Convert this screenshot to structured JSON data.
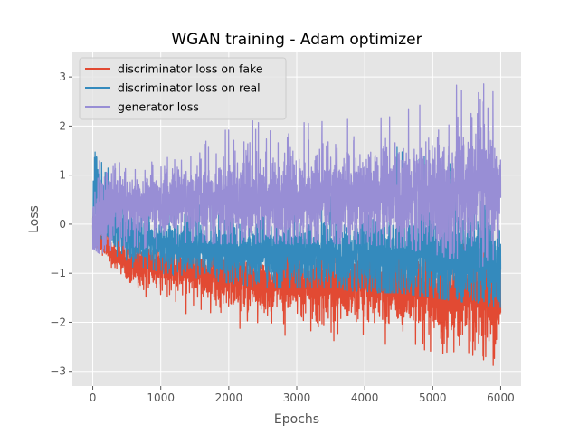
{
  "chart_data": {
    "type": "line",
    "title": "WGAN training - Adam optimizer",
    "xlabel": "Epochs",
    "ylabel": "Loss",
    "xlim": [
      -300,
      6300
    ],
    "ylim": [
      -3.3,
      3.5
    ],
    "xticks": [
      0,
      1000,
      2000,
      3000,
      4000,
      5000,
      6000
    ],
    "yticks": [
      -3,
      -2,
      -1,
      0,
      1,
      2,
      3
    ],
    "grid": true,
    "legend_position": "top-left",
    "n_points": 6001,
    "series": [
      {
        "name": "discriminator loss on fake",
        "color": "#E24A33",
        "description_points": {
          "x": [
            0,
            100,
            300,
            600,
            1000,
            1500,
            2000,
            2500,
            3000,
            3500,
            4000,
            4500,
            5000,
            5500,
            6000
          ],
          "mean": [
            0.0,
            -0.3,
            -0.6,
            -0.8,
            -0.9,
            -1.0,
            -1.1,
            -1.2,
            -1.2,
            -1.25,
            -1.3,
            -1.35,
            -1.4,
            -1.5,
            -1.6
          ],
          "min": [
            -0.4,
            -0.6,
            -1.0,
            -1.4,
            -1.6,
            -1.9,
            -2.2,
            -2.3,
            -2.3,
            -2.5,
            -2.5,
            -2.6,
            -2.7,
            -2.9,
            -2.9
          ],
          "max": [
            0.3,
            0.1,
            -0.2,
            -0.3,
            -0.4,
            -0.4,
            -0.5,
            -0.6,
            -0.6,
            -0.6,
            -0.6,
            -0.5,
            -0.5,
            -0.4,
            -0.5
          ]
        }
      },
      {
        "name": "discriminator loss on real",
        "color": "#348ABD",
        "description_points": {
          "x": [
            0,
            30,
            100,
            300,
            600,
            1000,
            1500,
            2000,
            2500,
            3000,
            3500,
            4000,
            4500,
            5000,
            5500,
            6000
          ],
          "mean": [
            0.0,
            1.0,
            0.5,
            0.0,
            -0.3,
            -0.4,
            -0.5,
            -0.55,
            -0.6,
            -0.6,
            -0.65,
            -0.65,
            -0.7,
            -0.7,
            -0.75,
            -0.8
          ],
          "min": [
            -0.3,
            -0.2,
            -0.5,
            -0.7,
            -0.9,
            -1.0,
            -1.1,
            -1.2,
            -1.3,
            -1.3,
            -1.3,
            -1.4,
            -1.4,
            -1.5,
            -1.6,
            -1.7
          ],
          "max": [
            0.5,
            2.1,
            1.7,
            0.8,
            0.5,
            0.4,
            0.4,
            0.5,
            0.5,
            0.6,
            0.6,
            0.7,
            1.7,
            1.4,
            1.3,
            1.2
          ]
        }
      },
      {
        "name": "generator loss",
        "color": "#988ED5",
        "description_points": {
          "x": [
            0,
            100,
            300,
            600,
            1000,
            1500,
            2000,
            2500,
            3000,
            3500,
            4000,
            4500,
            5000,
            5500,
            6000
          ],
          "mean": [
            0.0,
            0.2,
            0.35,
            0.4,
            0.45,
            0.45,
            0.5,
            0.5,
            0.5,
            0.55,
            0.55,
            0.6,
            0.6,
            0.65,
            0.65
          ],
          "min": [
            -0.5,
            -0.6,
            -0.6,
            -0.5,
            -0.5,
            -0.4,
            -0.4,
            -0.4,
            -0.4,
            -0.4,
            -0.4,
            -0.5,
            -0.6,
            -0.8,
            -1.0
          ],
          "max": [
            1.0,
            2.5,
            1.3,
            1.2,
            1.3,
            1.6,
            2.2,
            2.2,
            2.1,
            2.3,
            2.3,
            2.4,
            2.5,
            3.2,
            2.9
          ]
        }
      }
    ]
  }
}
